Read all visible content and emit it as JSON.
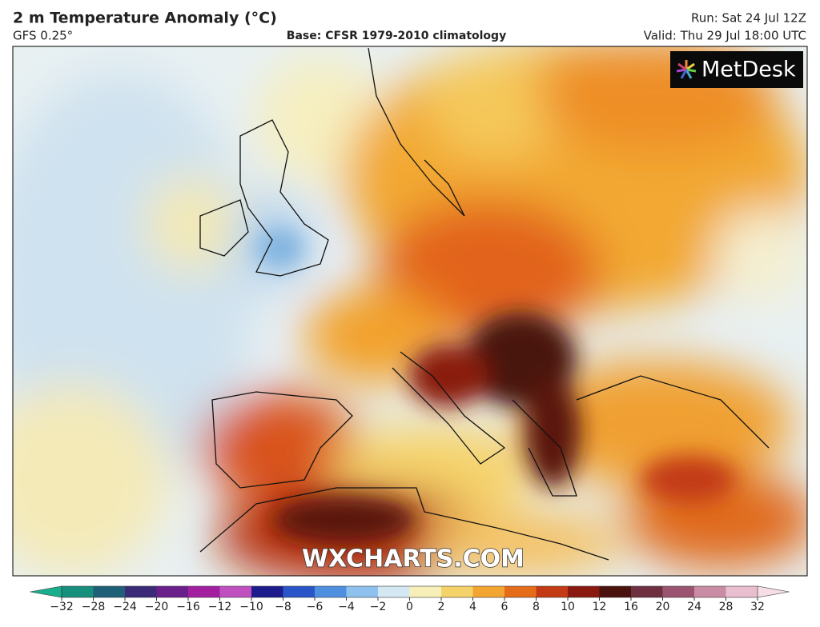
{
  "header": {
    "title": "2 m Temperature Anomaly (°C)",
    "model": "GFS 0.25°",
    "base": "Base: CFSR 1979-2010 climatology",
    "run": "Run: Sat 24 Jul 12Z",
    "valid": "Valid: Thu 29 Jul 18:00 UTC"
  },
  "logo": "MetDesk",
  "watermark": "WXCHARTS.COM",
  "colorbar": {
    "ticks": [
      {
        "value": -32,
        "label": "−32"
      },
      {
        "value": -28,
        "label": "−28"
      },
      {
        "value": -24,
        "label": "−24"
      },
      {
        "value": -20,
        "label": "−20"
      },
      {
        "value": -16,
        "label": "−16"
      },
      {
        "value": -12,
        "label": "−12"
      },
      {
        "value": -10,
        "label": "−10"
      },
      {
        "value": -8,
        "label": "−8"
      },
      {
        "value": -6,
        "label": "−6"
      },
      {
        "value": -4,
        "label": "−4"
      },
      {
        "value": -2,
        "label": "−2"
      },
      0,
      2,
      4,
      6,
      8,
      10,
      12,
      16,
      20,
      24,
      28,
      32
    ],
    "colors": [
      "#178f7d",
      "#1f5f78",
      "#3b2a78",
      "#6a1f8a",
      "#a21fa0",
      "#c04fc0",
      "#1c1c8c",
      "#2a55c8",
      "#4f8fe0",
      "#8fc1ee",
      "#d4e8f4",
      "#f7efb8",
      "#f6d36a",
      "#f2a530",
      "#e56d1a",
      "#c33a14",
      "#8a1a10",
      "#4a120c",
      "#6e3040",
      "#9a5470",
      "#c98ca4",
      "#e9bfd0"
    ],
    "under_color": "#18b08c",
    "over_color": "#f6dde6"
  }
}
